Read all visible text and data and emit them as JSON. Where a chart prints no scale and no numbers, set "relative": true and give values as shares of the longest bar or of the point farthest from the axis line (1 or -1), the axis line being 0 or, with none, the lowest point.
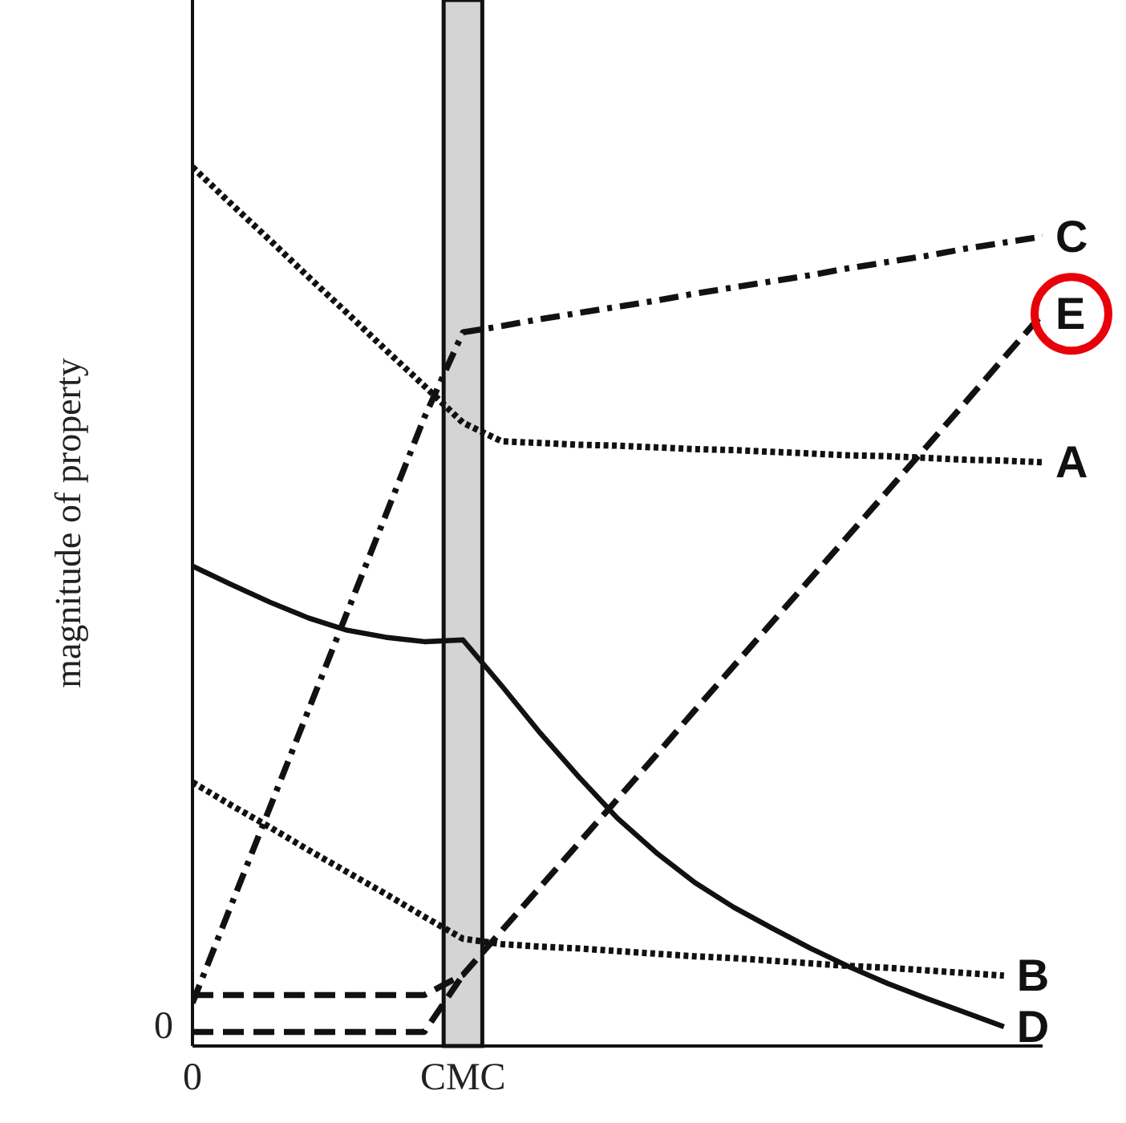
{
  "chart_data": {
    "type": "line",
    "ylabel": "magnitude of property",
    "relative": true,
    "categories": [
      "0",
      null,
      null,
      null,
      null,
      null,
      null,
      "CMC",
      null,
      null,
      null,
      null,
      null,
      null,
      null,
      null,
      null,
      null,
      null,
      null,
      null,
      null,
      null
    ],
    "annotations": [
      "0"
    ],
    "bands": [
      {
        "axis": "x",
        "from": "CMC",
        "to": "CMC",
        "color": "#d4d4d4"
      }
    ],
    "series": [
      {
        "name": "C",
        "color": "#111111",
        "line_style": "dashdot",
        "values": [
          0.049,
          0.16,
          0.271,
          0.382,
          0.493,
          0.604,
          0.715,
          0.812,
          0.819,
          0.827,
          0.834,
          0.841,
          0.848,
          0.856,
          0.863,
          0.87,
          0.877,
          0.885,
          0.892,
          0.899,
          0.907,
          0.914,
          0.921
        ]
      },
      {
        "name": "E",
        "color": "#111111",
        "line_style": "dashed",
        "values": [
          0.058,
          0.058,
          0.058,
          0.058,
          0.058,
          0.058,
          0.058,
          0.081,
          0.131,
          0.181,
          0.231,
          0.281,
          0.331,
          0.382,
          0.432,
          0.482,
          0.532,
          0.582,
          0.632,
          0.682,
          0.732,
          0.783,
          0.833
        ]
      },
      {
        "name": "A",
        "color": "#111111",
        "line_style": "dotted",
        "values": [
          1,
          0.958,
          0.917,
          0.875,
          0.834,
          0.792,
          0.751,
          0.709,
          0.688,
          0.686,
          0.684,
          0.683,
          0.681,
          0.679,
          0.678,
          0.676,
          0.674,
          0.672,
          0.671,
          0.669,
          0.667,
          0.666,
          0.664
        ]
      },
      {
        "name": "B",
        "color": "#111111",
        "line_style": "dotted",
        "values": [
          0.3,
          0.274,
          0.249,
          0.223,
          0.198,
          0.173,
          0.147,
          0.122,
          0.116,
          0.113,
          0.111,
          0.108,
          0.105,
          0.102,
          0.1,
          0.097,
          0.094,
          0.091,
          0.089,
          0.086,
          0.083,
          0.08,
          null
        ]
      },
      {
        "name": "D",
        "color": "#111111",
        "line_style": "solid",
        "values": [
          0.546,
          0.525,
          0.505,
          0.487,
          0.473,
          0.465,
          0.46,
          0.462,
          0.41,
          0.356,
          0.306,
          0.259,
          0.22,
          0.186,
          0.158,
          0.134,
          0.111,
          0.09,
          0.071,
          0.054,
          0.038,
          0.022,
          null
        ]
      },
      {
        "color": "#111111",
        "line_style": "dashed",
        "values": [
          0.016,
          0.016,
          0.016,
          0.016,
          0.016,
          0.016,
          0.016,
          0.081,
          null,
          null,
          null,
          null,
          null,
          null,
          null,
          null,
          null,
          null,
          null,
          null,
          null,
          null,
          null
        ]
      }
    ]
  }
}
